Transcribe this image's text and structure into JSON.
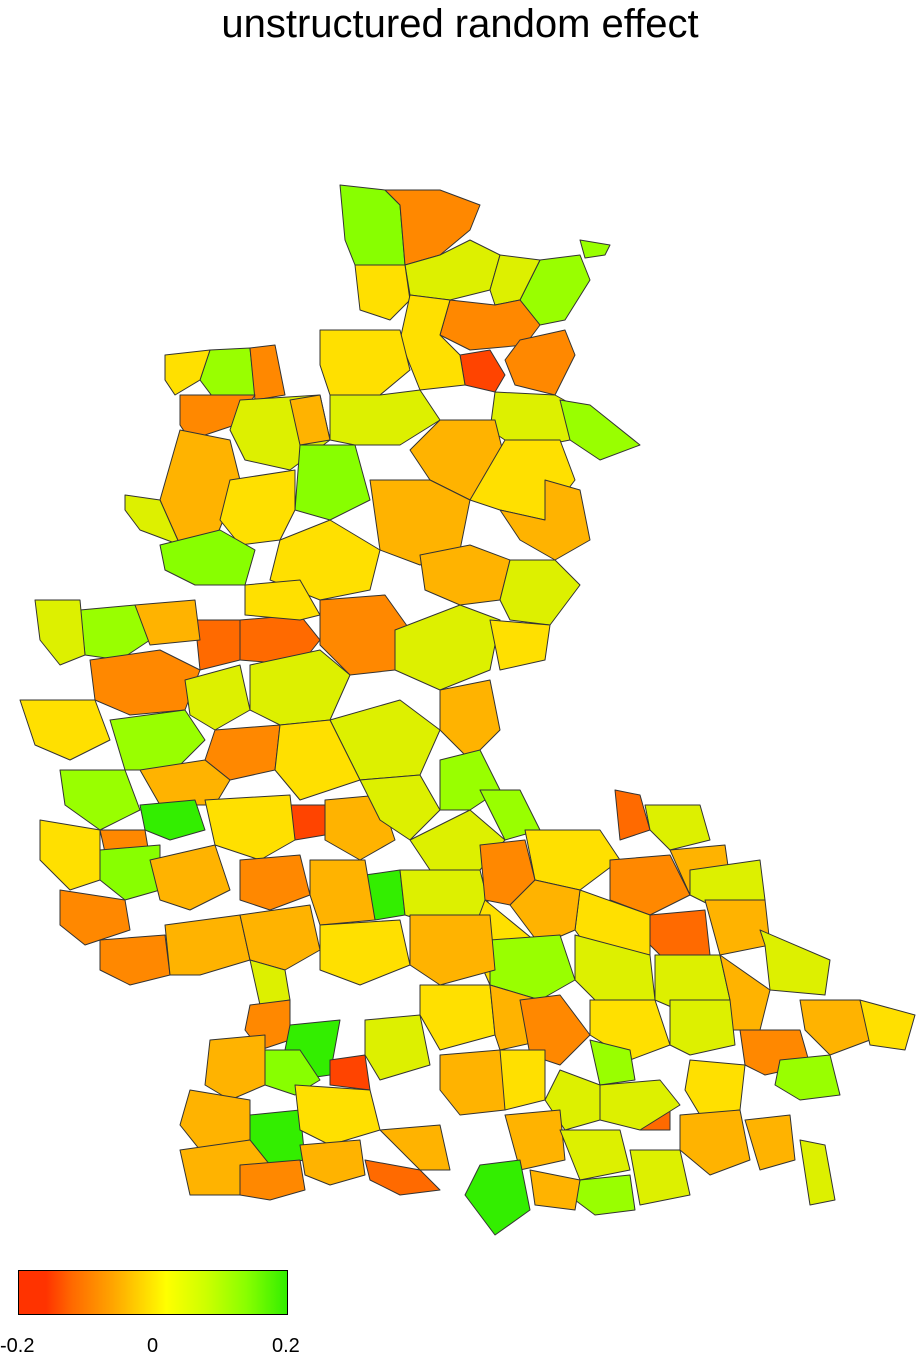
{
  "title": "unstructured random effect",
  "legend": {
    "ticks": [
      "-0.2",
      "0",
      "0.2"
    ],
    "range": [
      -0.2,
      0.2
    ],
    "colors": [
      "#ff3300",
      "#ff6a00",
      "#ffa500",
      "#ffd200",
      "#ffff00",
      "#ccff00",
      "#88ff00",
      "#33ee00"
    ]
  },
  "palette": {
    "strong_negative": "#ff4400",
    "negative": "#ff8800",
    "slight_negative": "#ffb300",
    "neutral": "#ffe000",
    "slight_positive": "#ddf000",
    "positive": "#99ff00",
    "strong_positive": "#33ee00",
    "border": "#333333"
  }
}
